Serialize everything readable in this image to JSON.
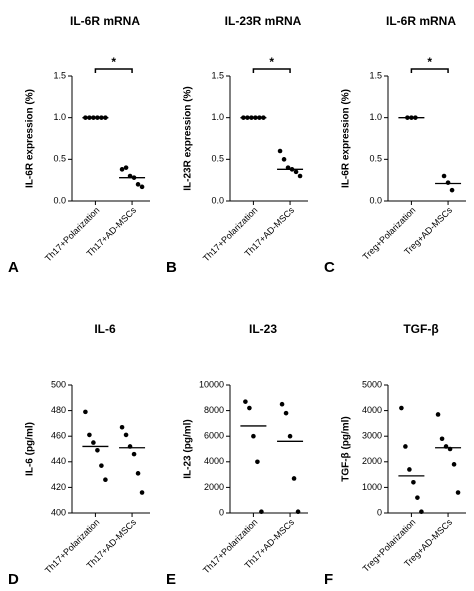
{
  "chart_data": [
    {
      "type": "dot",
      "panel_label": "A",
      "title": "IL-6R mRNA",
      "y_label": "IL-6R expression (%)",
      "categories": [
        "Th17+Polarization",
        "Th17+AD-MSCs"
      ],
      "points": [
        [
          1.0,
          1.0,
          1.0,
          1.0,
          1.0,
          1.0
        ],
        [
          0.38,
          0.4,
          0.3,
          0.28,
          0.2,
          0.17
        ]
      ],
      "center_lines": [
        1.0,
        0.28
      ],
      "significance": "*",
      "color": "#000000",
      "ylim": [
        0,
        1.5
      ],
      "yticks": [
        {
          "value": 0,
          "label": "0.0"
        },
        0.5,
        {
          "value": 1,
          "label": "1.0"
        },
        1.5
      ]
    },
    {
      "type": "dot",
      "panel_label": "B",
      "title": "IL-23R mRNA",
      "y_label": "IL-23R expression (%)",
      "categories": [
        "Th17+Polarization",
        "Th17+AD-MSCs"
      ],
      "points": [
        [
          1.0,
          1.0,
          1.0,
          1.0,
          1.0,
          1.0
        ],
        [
          0.6,
          0.5,
          0.4,
          0.38,
          0.35,
          0.3
        ]
      ],
      "center_lines": [
        1.0,
        0.38
      ],
      "significance": "*",
      "color": "#000000",
      "ylim": [
        0,
        1.5
      ],
      "yticks": [
        {
          "value": 0,
          "label": "0.0"
        },
        0.5,
        {
          "value": 1,
          "label": "1.0"
        },
        1.5
      ]
    },
    {
      "type": "dot",
      "panel_label": "C",
      "title": "IL-6R mRNA",
      "y_label": "IL-6R expression (%)",
      "categories": [
        "Treg+Polarization",
        "Treg+AD-MSCs"
      ],
      "points": [
        [
          1.0,
          1.0,
          1.0
        ],
        [
          0.3,
          0.22,
          0.13
        ]
      ],
      "center_lines": [
        1.0,
        0.21
      ],
      "significance": "*",
      "color": "#000000",
      "ylim": [
        0,
        1.5
      ],
      "yticks": [
        {
          "value": 0,
          "label": "0.0"
        },
        0.5,
        {
          "value": 1,
          "label": "1.0"
        },
        1.5
      ]
    },
    {
      "type": "dot",
      "panel_label": "D",
      "title": "IL-6",
      "y_label": "IL-6 (pg/ml)",
      "categories": [
        "Th17+Polarization",
        "Th17+AD-MSCs"
      ],
      "points": [
        [
          479,
          461,
          455,
          449,
          437,
          426
        ],
        [
          467,
          461,
          452,
          446,
          431,
          416
        ]
      ],
      "center_lines": [
        452,
        451
      ],
      "color": "#000000",
      "ylim": [
        400,
        500
      ],
      "yticks": [
        400,
        420,
        440,
        460,
        480,
        500
      ]
    },
    {
      "type": "dot",
      "panel_label": "E",
      "title": "IL-23",
      "y_label": "IL-23 (pg/ml)",
      "categories": [
        "Th17+Polarization",
        "Th17+AD-MSCs"
      ],
      "points": [
        [
          8700,
          8200,
          6000,
          4000,
          100
        ],
        [
          8500,
          7800,
          6000,
          2700,
          100
        ]
      ],
      "center_lines": [
        6800,
        5600
      ],
      "color": "#000000",
      "ylim": [
        0,
        10000
      ],
      "yticks": [
        0,
        2000,
        4000,
        6000,
        8000,
        10000
      ]
    },
    {
      "type": "dot",
      "panel_label": "F",
      "title": "TGF-β",
      "y_label": "TGF-β (pg/ml)",
      "categories": [
        "Treg+Polarization",
        "Treg+AD-MSCs"
      ],
      "points": [
        [
          4100,
          2600,
          1700,
          1200,
          600,
          50
        ],
        [
          3850,
          2900,
          2600,
          2500,
          1900,
          800
        ]
      ],
      "center_lines": [
        1450,
        2550
      ],
      "color": "#000000",
      "ylim": [
        0,
        5000
      ],
      "yticks": [
        0,
        1000,
        2000,
        3000,
        4000,
        5000
      ]
    }
  ]
}
